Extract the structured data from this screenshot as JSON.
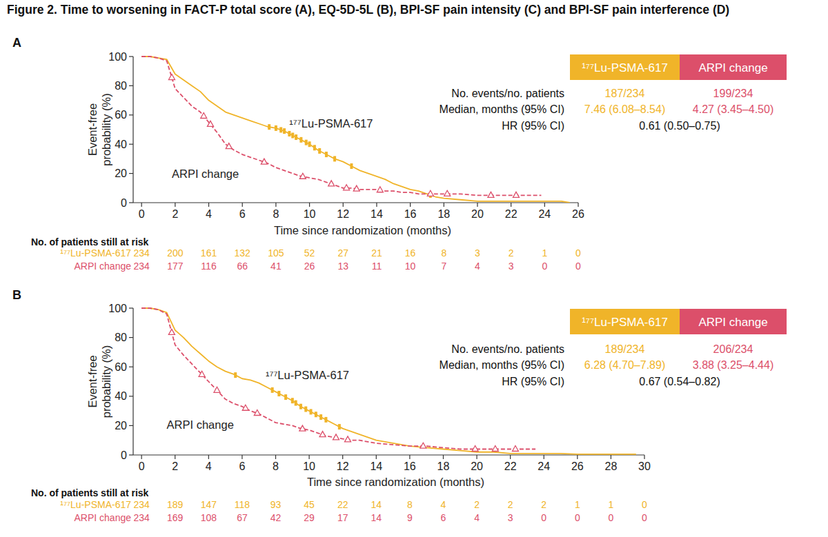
{
  "figure_title": "Figure 2. Time to worsening in FACT-P total score (A), EQ-5D-5L (B), BPI-SF pain intensity (C) and BPI-SF pain interference (D)",
  "chart_data": [
    {
      "type": "line",
      "title": "A",
      "x_label": "Time since randomization (months)",
      "y_label": "Event-free probability (%)",
      "xlim": [
        -0.5,
        26
      ],
      "xticks": [
        0,
        2,
        4,
        6,
        8,
        10,
        12,
        14,
        16,
        18,
        20,
        22,
        24,
        26
      ],
      "ylim": [
        0,
        100
      ],
      "yticks": [
        0,
        20,
        40,
        60,
        80,
        100
      ],
      "grid": false,
      "x": [
        0,
        0.5,
        1,
        1.5,
        2,
        2.5,
        3,
        3.5,
        4,
        4.5,
        5,
        5.5,
        6,
        6.5,
        7,
        7.5,
        8,
        8.5,
        9,
        9.5,
        10,
        10.5,
        11,
        11.5,
        12,
        12.5,
        13,
        13.5,
        14,
        14.5,
        15,
        15.5,
        16,
        16.5,
        17,
        17.5,
        18,
        19,
        20,
        21,
        22,
        23,
        23.8,
        24,
        25,
        25.5
      ],
      "series": [
        {
          "name": "¹⁷⁷Lu-PSMA-617",
          "color": "#f0b429",
          "line_style": "solid",
          "marker": "tick",
          "values": [
            100,
            100,
            99,
            98,
            88,
            84,
            80,
            76,
            70,
            66,
            62,
            60,
            58,
            56,
            54,
            52,
            51,
            49,
            46,
            43,
            40,
            36,
            33,
            30,
            28,
            25,
            22,
            20,
            18,
            16,
            13,
            11,
            9,
            8,
            6,
            4,
            3,
            2,
            1,
            1,
            1,
            1,
            1,
            1,
            1,
            0
          ],
          "censored": [
            7.6,
            8.0,
            8.3,
            8.5,
            8.8,
            9.0,
            9.2,
            9.5,
            9.8,
            10.0,
            10.3,
            10.6,
            11.0,
            11.5,
            12.5,
            17.2
          ]
        },
        {
          "name": "ARPI change",
          "color": "#dc4f6a",
          "line_style": "dashed",
          "marker": "triangle",
          "values": [
            100,
            100,
            99,
            97,
            78,
            72,
            66,
            62,
            55,
            48,
            40,
            36,
            33,
            31,
            29,
            27,
            24,
            22,
            20,
            18,
            17,
            16,
            14,
            12,
            10,
            10,
            9,
            9,
            9,
            8,
            8,
            7,
            7,
            6,
            6,
            6,
            6,
            6,
            5,
            5,
            5,
            5,
            5,
            null,
            null,
            null
          ],
          "censored": [
            1.8,
            3.7,
            4.1,
            5.2,
            7.3,
            9.6,
            11.3,
            12.2,
            12.8,
            14.2,
            17.2,
            18.2,
            20.8,
            22.3
          ]
        }
      ],
      "annotations": [
        {
          "text": "¹⁷⁷Lu-PSMA-617",
          "x": 8.8,
          "y": 51.4
        },
        {
          "text": "ARPI change",
          "x": 1.8,
          "y": 17
        }
      ],
      "at_risk": {
        "title": "No. of patients still at risk",
        "times": [
          0,
          2,
          4,
          6,
          8,
          10,
          12,
          14,
          16,
          18,
          20,
          22,
          24,
          26
        ],
        "rows": [
          {
            "name": "¹⁷⁷Lu-PSMA-617",
            "color": "#f0b429",
            "values": [
              234,
              200,
              161,
              132,
              105,
              52,
              27,
              21,
              16,
              8,
              3,
              2,
              1,
              0
            ]
          },
          {
            "name": "ARPI change",
            "color": "#dc4f6a",
            "values": [
              234,
              177,
              116,
              66,
              41,
              26,
              13,
              11,
              10,
              7,
              4,
              3,
              0,
              0
            ]
          }
        ]
      },
      "stats": {
        "rows": [
          {
            "label": "No. events/no. patients",
            "values": [
              "187/234",
              "199/234"
            ]
          },
          {
            "label": "Median, months (95% CI)",
            "values": [
              "7.46 (6.08–8.54)",
              "4.27 (3.45–4.50)"
            ]
          }
        ],
        "hr": {
          "label": "HR (95% CI)",
          "value": "0.61 (0.50–0.75)"
        }
      }
    },
    {
      "type": "line",
      "title": "B",
      "x_label": "Time since randomization (months)",
      "y_label": "Event-free probability (%)",
      "xlim": [
        -0.5,
        30
      ],
      "xticks": [
        0,
        2,
        4,
        6,
        8,
        10,
        12,
        14,
        16,
        18,
        20,
        22,
        24,
        26,
        28,
        30
      ],
      "ylim": [
        0,
        100
      ],
      "yticks": [
        0,
        20,
        40,
        60,
        80,
        100
      ],
      "grid": false,
      "x": [
        0,
        0.5,
        1,
        1.5,
        2,
        2.5,
        3,
        3.5,
        4,
        4.5,
        5,
        5.5,
        6,
        6.5,
        7,
        7.5,
        8,
        8.5,
        9,
        9.5,
        10,
        10.5,
        11,
        11.5,
        12,
        12.5,
        13,
        13.5,
        14,
        15,
        16,
        17,
        18,
        19,
        20,
        21,
        22,
        23,
        23.5,
        24,
        25,
        26,
        27,
        28,
        29,
        29.5
      ],
      "series": [
        {
          "name": "¹⁷⁷Lu-PSMA-617",
          "color": "#f0b429",
          "line_style": "solid",
          "marker": "tick",
          "values": [
            100,
            100,
            99,
            97,
            85,
            80,
            74,
            69,
            64,
            60,
            57,
            55,
            52,
            51,
            49,
            46,
            43,
            40,
            37,
            33,
            30,
            27,
            24,
            21,
            18,
            16,
            14,
            12,
            10,
            8,
            6,
            5,
            4,
            3,
            2,
            2,
            1,
            1,
            1,
            1,
            1,
            0.5,
            0.5,
            0.5,
            0.5,
            0.5
          ],
          "censored": [
            5.6,
            7.8,
            8.2,
            8.6,
            9.0,
            9.2,
            9.5,
            9.8,
            10.1,
            10.4,
            10.7,
            11.0,
            11.8
          ]
        },
        {
          "name": "ARPI change",
          "color": "#dc4f6a",
          "line_style": "dashed",
          "marker": "triangle",
          "values": [
            100,
            100,
            99,
            96,
            75,
            68,
            62,
            56,
            50,
            44,
            38,
            35,
            33,
            30,
            28,
            25,
            22,
            21,
            20,
            18,
            17,
            15,
            13,
            12,
            11,
            10,
            10,
            9,
            8,
            7,
            6,
            6,
            5,
            4,
            4,
            4,
            4,
            4,
            4,
            null,
            null,
            null,
            null,
            null,
            null,
            null
          ],
          "censored": [
            1.8,
            3.6,
            4.5,
            6.2,
            6.9,
            9.6,
            10.8,
            11.6,
            12.3,
            16.8,
            19.9,
            21.1,
            22.3
          ]
        }
      ],
      "annotations": [
        {
          "text": "¹⁷⁷Lu-PSMA-617",
          "x": 7.4,
          "y": 51.6
        },
        {
          "text": "ARPI change",
          "x": 1.5,
          "y": 18
        }
      ],
      "at_risk": {
        "title": "No. of patients still at risk",
        "times": [
          0,
          2,
          4,
          6,
          8,
          10,
          12,
          14,
          16,
          18,
          20,
          22,
          24,
          26,
          28,
          30
        ],
        "rows": [
          {
            "name": "¹⁷⁷Lu-PSMA-617",
            "color": "#f0b429",
            "values": [
              234,
              189,
              147,
              118,
              93,
              45,
              22,
              14,
              8,
              4,
              2,
              2,
              2,
              1,
              1,
              0
            ]
          },
          {
            "name": "ARPI change",
            "color": "#dc4f6a",
            "values": [
              234,
              169,
              108,
              67,
              42,
              29,
              17,
              14,
              9,
              6,
              4,
              3,
              0,
              0,
              0,
              0
            ]
          }
        ]
      },
      "stats": {
        "rows": [
          {
            "label": "No. events/no. patients",
            "values": [
              "189/234",
              "206/234"
            ]
          },
          {
            "label": "Median, months (95% CI)",
            "values": [
              "6.28 (4.70–7.89)",
              "3.88 (3.25–4.44)"
            ]
          }
        ],
        "hr": {
          "label": "HR (95% CI)",
          "value": "0.67 (0.54–0.82)"
        }
      }
    }
  ]
}
